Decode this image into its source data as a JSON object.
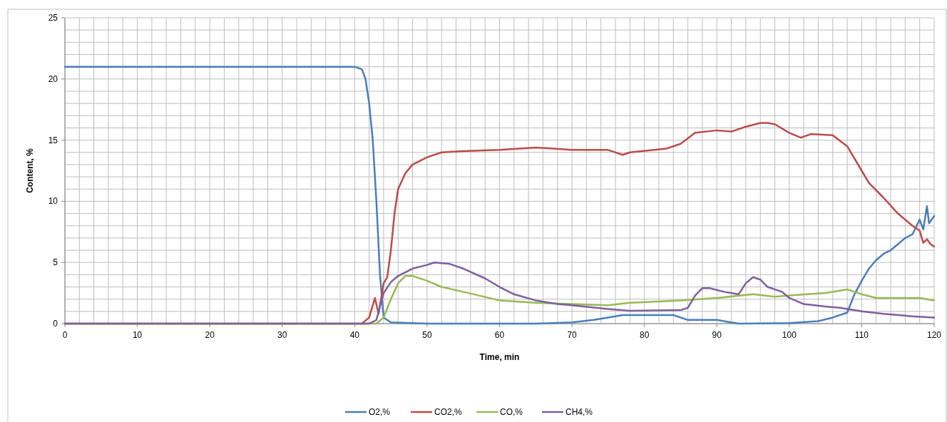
{
  "chart_data": {
    "type": "line",
    "xlabel": "Time, min",
    "ylabel": "Content, %",
    "xlim": [
      0,
      120
    ],
    "ylim": [
      0,
      25
    ],
    "xticks": [
      0,
      10,
      20,
      30,
      40,
      50,
      60,
      70,
      80,
      90,
      100,
      110,
      120
    ],
    "yticks": [
      0,
      5,
      10,
      15,
      20,
      25
    ],
    "grid": true,
    "legend": "bottom",
    "marker": "none",
    "line_style": "solid",
    "series": [
      {
        "name": "O2,%",
        "color": "#4a7ebb",
        "x": [
          0,
          40,
          41,
          41.5,
          42,
          42.5,
          43,
          43.5,
          44,
          45,
          50,
          65,
          70,
          73,
          76,
          77,
          80,
          84,
          86,
          90,
          92,
          93,
          100,
          104,
          106,
          108,
          109,
          110,
          111,
          112,
          113,
          114,
          115,
          116,
          117,
          118,
          118.5,
          119,
          119.3,
          120
        ],
        "values": [
          21,
          21,
          20.8,
          20,
          18,
          15,
          10,
          4,
          0.5,
          0.1,
          0,
          0,
          0.1,
          0.3,
          0.6,
          0.7,
          0.7,
          0.7,
          0.3,
          0.3,
          0.1,
          0,
          0.05,
          0.2,
          0.5,
          0.9,
          2.4,
          3.5,
          4.5,
          5.2,
          5.7,
          6,
          6.5,
          7,
          7.3,
          8.5,
          7.7,
          9.6,
          8.2,
          8.8
        ]
      },
      {
        "name": "CO2,%",
        "color": "#be4b48",
        "x": [
          0,
          41,
          42,
          42.8,
          43.3,
          44,
          44.5,
          45,
          45.5,
          46,
          47,
          48,
          50,
          52,
          55,
          60,
          65,
          70,
          75,
          77,
          78,
          83,
          85,
          87,
          90,
          92,
          94,
          96,
          97,
          98,
          100,
          101.6,
          103,
          106,
          108,
          110,
          111,
          113,
          115,
          117,
          118,
          118.5,
          119,
          119.5,
          120
        ],
        "values": [
          0,
          0,
          0.5,
          2.1,
          0.8,
          3.3,
          3.8,
          6,
          9,
          11,
          12.3,
          13,
          13.6,
          14,
          14.1,
          14.2,
          14.4,
          14.2,
          14.2,
          13.8,
          14,
          14.3,
          14.7,
          15.6,
          15.8,
          15.7,
          16.1,
          16.4,
          16.4,
          16.3,
          15.6,
          15.2,
          15.5,
          15.4,
          14.5,
          12.5,
          11.5,
          10.3,
          9,
          8,
          7.6,
          6.6,
          6.9,
          6.5,
          6.3
        ]
      },
      {
        "name": "CO,%",
        "color": "#98b954",
        "x": [
          0,
          43,
          44,
          45,
          46,
          47,
          48,
          50,
          52,
          55,
          60,
          65,
          70,
          75,
          78,
          85,
          90,
          95,
          98,
          100,
          105,
          108,
          110,
          112,
          115,
          118,
          120
        ],
        "values": [
          0,
          0,
          0.5,
          2,
          3.3,
          3.9,
          3.9,
          3.5,
          3,
          2.6,
          1.9,
          1.7,
          1.6,
          1.5,
          1.7,
          1.9,
          2.1,
          2.4,
          2.2,
          2.3,
          2.5,
          2.8,
          2.4,
          2.1,
          2.1,
          2.1,
          1.9
        ]
      },
      {
        "name": "CH4,%",
        "color": "#7d60a0",
        "x": [
          0,
          42,
          43,
          44,
          45,
          46,
          48,
          50,
          51,
          53,
          55,
          58,
          60,
          62,
          65,
          68,
          70,
          75,
          78,
          85,
          86,
          87,
          88,
          89,
          91,
          93,
          94,
          95,
          96,
          97,
          99,
          100,
          102,
          105,
          107,
          110,
          113,
          117,
          120
        ],
        "values": [
          0,
          0,
          0.3,
          2.5,
          3.4,
          3.9,
          4.5,
          4.8,
          5,
          4.9,
          4.5,
          3.7,
          3,
          2.4,
          1.9,
          1.6,
          1.5,
          1.2,
          1.05,
          1.1,
          1.3,
          2.3,
          2.9,
          2.9,
          2.6,
          2.4,
          3.3,
          3.8,
          3.6,
          3,
          2.6,
          2.1,
          1.6,
          1.4,
          1.3,
          1,
          0.8,
          0.6,
          0.5
        ]
      }
    ]
  }
}
